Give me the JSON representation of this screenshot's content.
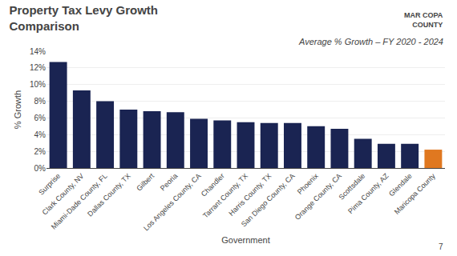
{
  "chart_data": {
    "type": "bar",
    "title": "Property Tax Levy Growth\nComparison",
    "subtitle": "Average % Growth – FY 2020 - 2024",
    "xlabel": "Government",
    "ylabel": "% Growth",
    "categories": [
      "Surprise",
      "Clark County, NV",
      "Miami-Dade County, FL",
      "Dallas County, TX",
      "Gilbert",
      "Peoria",
      "Los Angeles County, CA",
      "Chandler",
      "Tarrant County, TX",
      "Harris County, TX",
      "San Diego County, CA",
      "Phoenix",
      "Orange County, CA",
      "Scottsdale",
      "Pima County, AZ",
      "Glendale",
      "Maricopa County"
    ],
    "values": [
      12.7,
      9.3,
      8.0,
      7.0,
      6.8,
      6.7,
      5.9,
      5.7,
      5.5,
      5.4,
      5.4,
      5.0,
      4.7,
      3.5,
      2.9,
      2.9,
      2.2
    ],
    "colors": [
      "#1a2452",
      "#1a2452",
      "#1a2452",
      "#1a2452",
      "#1a2452",
      "#1a2452",
      "#1a2452",
      "#1a2452",
      "#1a2452",
      "#1a2452",
      "#1a2452",
      "#1a2452",
      "#1a2452",
      "#1a2452",
      "#1a2452",
      "#1a2452",
      "#e07820"
    ],
    "ylim": [
      0,
      14
    ],
    "yticks": [
      {
        "value": 0,
        "label": "0%"
      },
      {
        "value": 2,
        "label": "2%"
      },
      {
        "value": 4,
        "label": "4%"
      },
      {
        "value": 6,
        "label": "6%"
      },
      {
        "value": 8,
        "label": "8%"
      },
      {
        "value": 10,
        "label": "10%"
      },
      {
        "value": 12,
        "label": "12%"
      },
      {
        "value": 14,
        "label": "14%"
      }
    ],
    "grid": true,
    "annotations": [
      "7",
      "MAR",
      "COPA",
      "COUNTY"
    ]
  }
}
